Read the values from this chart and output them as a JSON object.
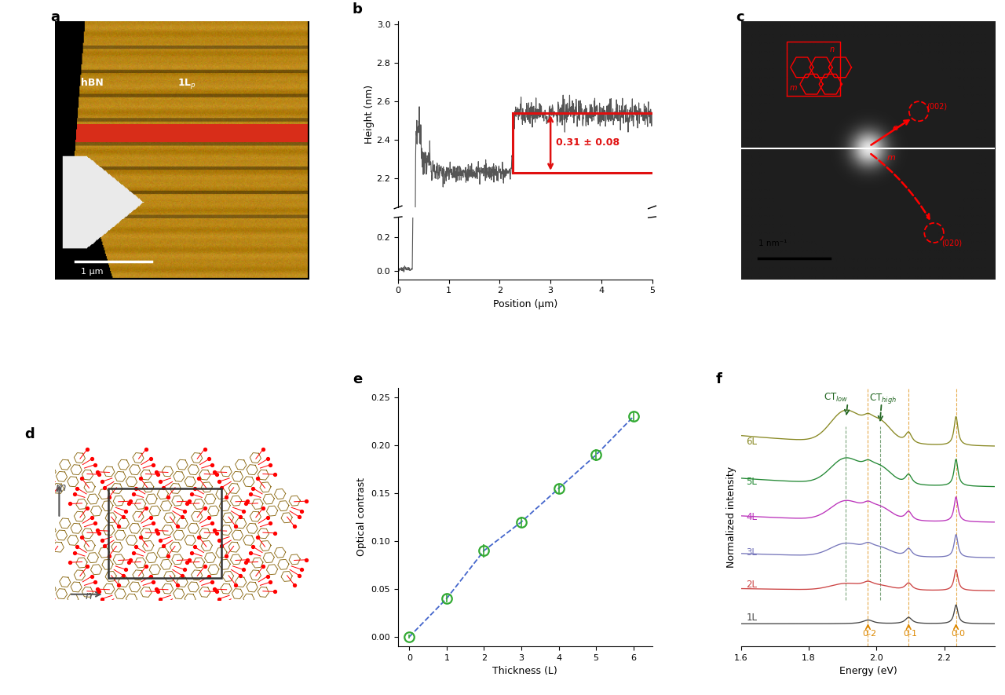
{
  "panel_labels": [
    "a",
    "b",
    "c",
    "d",
    "e",
    "f"
  ],
  "panel_label_fontsize": 13,
  "panel_label_weight": "bold",
  "panel_b": {
    "xlabel": "Position (μm)",
    "ylabel": "Height (nm)",
    "xlim": [
      0,
      5
    ],
    "step_x1": 2.25,
    "step_y_low": 2.23,
    "step_y_high": 2.54,
    "annotation_text": "0.31 ± 0.08",
    "annotation_color": "#e01010",
    "line_color": "#555555",
    "step_color": "#e01010",
    "yticks_top": [
      2.2,
      2.4,
      2.6,
      2.8,
      3.0
    ],
    "yticks_bottom": [
      0.0,
      0.2
    ]
  },
  "panel_e": {
    "xlabel": "Thickness (L)",
    "ylabel": "Optical contrast",
    "xlim": [
      -0.3,
      6.5
    ],
    "ylim": [
      -0.01,
      0.26
    ],
    "x": [
      0,
      1,
      2,
      3,
      4,
      5,
      6
    ],
    "y": [
      0.0,
      0.04,
      0.09,
      0.12,
      0.155,
      0.19,
      0.23
    ],
    "yerr": [
      0.002,
      0.004,
      0.007,
      0.005,
      0.005,
      0.006,
      0.005
    ],
    "line_color": "#4466cc",
    "marker_facecolor": "none",
    "marker_edgecolor": "#33aa33",
    "yticks": [
      0.0,
      0.05,
      0.1,
      0.15,
      0.2,
      0.25
    ],
    "xticks": [
      0,
      1,
      2,
      3,
      4,
      5,
      6
    ]
  },
  "panel_f": {
    "xlabel": "Energy (eV)",
    "ylabel": "Normalized intensity",
    "xlim": [
      1.6,
      2.35
    ],
    "xticks": [
      1.6,
      1.8,
      2.0,
      2.2
    ],
    "layers": [
      "1L",
      "2L",
      "3L",
      "4L",
      "5L",
      "6L"
    ],
    "colors": [
      "#444444",
      "#cc4444",
      "#7777bb",
      "#bb33bb",
      "#228833",
      "#888822"
    ],
    "offsets": [
      0.0,
      0.13,
      0.26,
      0.4,
      0.54,
      0.7
    ],
    "peak_0_0": 2.235,
    "peak_0_1": 2.095,
    "peak_0_2": 1.975,
    "peak_CT_low": 1.91,
    "peak_CT_high": 2.01,
    "ct_arrow_color": "#226622",
    "peak_label_color": "#cc7700",
    "ct_label_color": "#226622"
  },
  "background_color": "#ffffff"
}
